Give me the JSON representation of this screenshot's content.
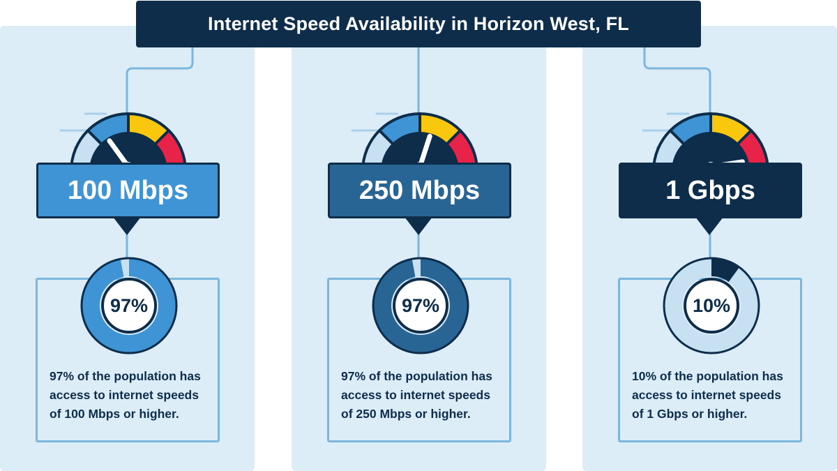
{
  "title": "Internet Speed Availability in Horizon West, FL",
  "colors": {
    "navy": "#0d2d4b",
    "panel": "#dcedf8",
    "light_blue": "#c7e1f3",
    "mid_blue": "#3e94d4",
    "dark_blue": "#286494",
    "yellow": "#f9c80e",
    "red": "#e8234a"
  },
  "columns": [
    {
      "speed_label": "100 Mbps",
      "percent": 97,
      "percent_label": "97%",
      "description": "97% of the population has access to internet speeds of 100 Mbps or higher.",
      "box_color": "#3e94d4",
      "ring_color": "#3e94d4",
      "needle_level": 0.3
    },
    {
      "speed_label": "250 Mbps",
      "percent": 97,
      "percent_label": "97%",
      "description": "97% of the population has access to internet speeds of 250 Mbps or higher.",
      "box_color": "#286494",
      "ring_color": "#286494",
      "needle_level": 0.6
    },
    {
      "speed_label": "1 Gbps",
      "percent": 10,
      "percent_label": "10%",
      "description": "10% of the population has access to internet speeds of 1 Gbps or higher.",
      "box_color": "#0d2d4b",
      "ring_color": "#0d2d4b",
      "needle_level": 0.95
    }
  ]
}
